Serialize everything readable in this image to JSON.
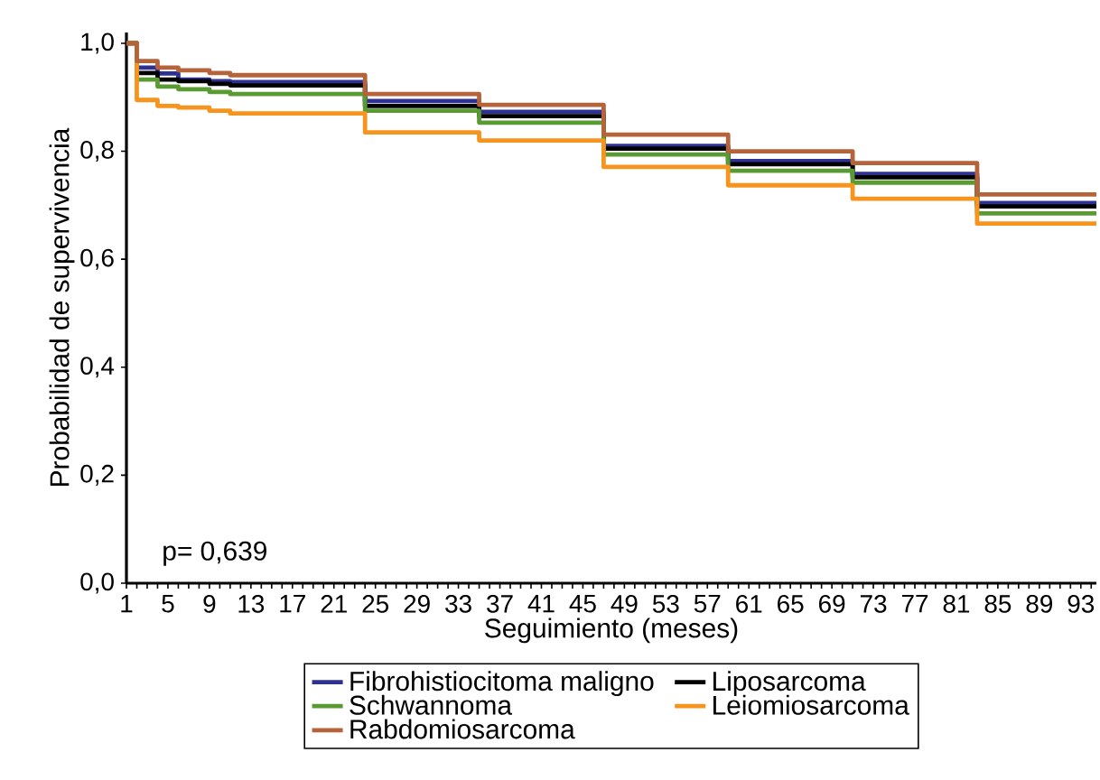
{
  "chart_data": {
    "type": "step",
    "xlabel": "Seguimiento (meses)",
    "ylabel": "Probabilidad de supervivencia",
    "annotations": [
      "p= 0,639"
    ],
    "xlim": [
      1,
      94.5
    ],
    "ylim": [
      0,
      1.02
    ],
    "xticks": [
      1,
      {
        "value": 2,
        "label": null
      },
      {
        "value": 3,
        "label": null
      },
      {
        "value": 4,
        "label": null
      },
      5,
      {
        "value": 6,
        "label": null
      },
      {
        "value": 7,
        "label": null
      },
      {
        "value": 8,
        "label": null
      },
      9,
      {
        "value": 10,
        "label": null
      },
      {
        "value": 11,
        "label": null
      },
      {
        "value": 12,
        "label": null
      },
      13,
      {
        "value": 14,
        "label": null
      },
      {
        "value": 15,
        "label": null
      },
      {
        "value": 16,
        "label": null
      },
      17,
      {
        "value": 18,
        "label": null
      },
      {
        "value": 19,
        "label": null
      },
      {
        "value": 20,
        "label": null
      },
      21,
      {
        "value": 22,
        "label": null
      },
      {
        "value": 23,
        "label": null
      },
      {
        "value": 24,
        "label": null
      },
      25,
      {
        "value": 26,
        "label": null
      },
      {
        "value": 27,
        "label": null
      },
      {
        "value": 28,
        "label": null
      },
      29,
      {
        "value": 30,
        "label": null
      },
      {
        "value": 31,
        "label": null
      },
      {
        "value": 32,
        "label": null
      },
      33,
      {
        "value": 34,
        "label": null
      },
      {
        "value": 35,
        "label": null
      },
      {
        "value": 36,
        "label": null
      },
      37,
      {
        "value": 38,
        "label": null
      },
      {
        "value": 39,
        "label": null
      },
      {
        "value": 40,
        "label": null
      },
      41,
      {
        "value": 42,
        "label": null
      },
      {
        "value": 43,
        "label": null
      },
      {
        "value": 44,
        "label": null
      },
      45,
      {
        "value": 46,
        "label": null
      },
      {
        "value": 47,
        "label": null
      },
      {
        "value": 48,
        "label": null
      },
      49,
      {
        "value": 50,
        "label": null
      },
      {
        "value": 51,
        "label": null
      },
      {
        "value": 52,
        "label": null
      },
      53,
      {
        "value": 54,
        "label": null
      },
      {
        "value": 55,
        "label": null
      },
      {
        "value": 56,
        "label": null
      },
      57,
      {
        "value": 58,
        "label": null
      },
      {
        "value": 59,
        "label": null
      },
      {
        "value": 60,
        "label": null
      },
      61,
      {
        "value": 62,
        "label": null
      },
      {
        "value": 63,
        "label": null
      },
      {
        "value": 64,
        "label": null
      },
      65,
      {
        "value": 66,
        "label": null
      },
      {
        "value": 67,
        "label": null
      },
      {
        "value": 68,
        "label": null
      },
      69,
      {
        "value": 70,
        "label": null
      },
      {
        "value": 71,
        "label": null
      },
      {
        "value": 72,
        "label": null
      },
      73,
      {
        "value": 74,
        "label": null
      },
      {
        "value": 75,
        "label": null
      },
      {
        "value": 76,
        "label": null
      },
      77,
      {
        "value": 78,
        "label": null
      },
      {
        "value": 79,
        "label": null
      },
      {
        "value": 80,
        "label": null
      },
      81,
      {
        "value": 82,
        "label": null
      },
      {
        "value": 83,
        "label": null
      },
      {
        "value": 84,
        "label": null
      },
      85,
      {
        "value": 86,
        "label": null
      },
      {
        "value": 87,
        "label": null
      },
      {
        "value": 88,
        "label": null
      },
      89,
      {
        "value": 90,
        "label": null
      },
      {
        "value": 91,
        "label": null
      },
      {
        "value": 92,
        "label": null
      },
      93,
      {
        "value": 94,
        "label": null
      }
    ],
    "yticks": [
      {
        "value": 0,
        "label": "0,0"
      },
      {
        "value": 0.2,
        "label": "0,2"
      },
      {
        "value": 0.4,
        "label": "0,4"
      },
      {
        "value": 0.6,
        "label": "0,6"
      },
      {
        "value": 0.8,
        "label": "0,8"
      },
      {
        "value": 1,
        "label": "1,0"
      }
    ],
    "legend": "bottom",
    "grid": false,
    "series": [
      {
        "name": "Fibrohistiocitoma maligno",
        "color": "#2e3192",
        "x": [
          1,
          2,
          4,
          6,
          9,
          11,
          24,
          35,
          47,
          59,
          71,
          83,
          94.5
        ],
        "values": [
          1.0,
          0.955,
          0.944,
          0.933,
          0.93,
          0.928,
          0.893,
          0.873,
          0.81,
          0.782,
          0.758,
          0.704,
          0.704
        ]
      },
      {
        "name": "Liposarcoma",
        "color": "#000000",
        "x": [
          1,
          2,
          4,
          6,
          9,
          11,
          24,
          35,
          47,
          59,
          71,
          83,
          94.5
        ],
        "values": [
          1.0,
          0.945,
          0.933,
          0.93,
          0.925,
          0.922,
          0.884,
          0.865,
          0.805,
          0.776,
          0.752,
          0.698,
          0.698
        ]
      },
      {
        "name": "Schwannoma",
        "color": "#5a9a32",
        "x": [
          1,
          2,
          4,
          6,
          9,
          11,
          24,
          35,
          47,
          59,
          71,
          83,
          94.5
        ],
        "values": [
          1.0,
          0.933,
          0.92,
          0.915,
          0.91,
          0.906,
          0.875,
          0.853,
          0.794,
          0.764,
          0.742,
          0.685,
          0.685
        ]
      },
      {
        "name": "Leiomiosarcoma",
        "color": "#f7941d",
        "x": [
          1,
          2,
          4,
          6,
          9,
          11,
          24,
          35,
          47,
          59,
          71,
          83,
          94.5
        ],
        "values": [
          1.0,
          0.895,
          0.884,
          0.881,
          0.875,
          0.87,
          0.835,
          0.82,
          0.771,
          0.737,
          0.712,
          0.666,
          0.666
        ]
      },
      {
        "name": "Rabdomiosarcoma",
        "color": "#b5633a",
        "x": [
          1,
          2,
          4,
          6,
          9,
          11,
          24,
          35,
          47,
          59,
          71,
          83,
          94.5
        ],
        "values": [
          1.0,
          0.967,
          0.955,
          0.95,
          0.945,
          0.941,
          0.906,
          0.886,
          0.831,
          0.8,
          0.778,
          0.72,
          0.72
        ]
      }
    ]
  }
}
